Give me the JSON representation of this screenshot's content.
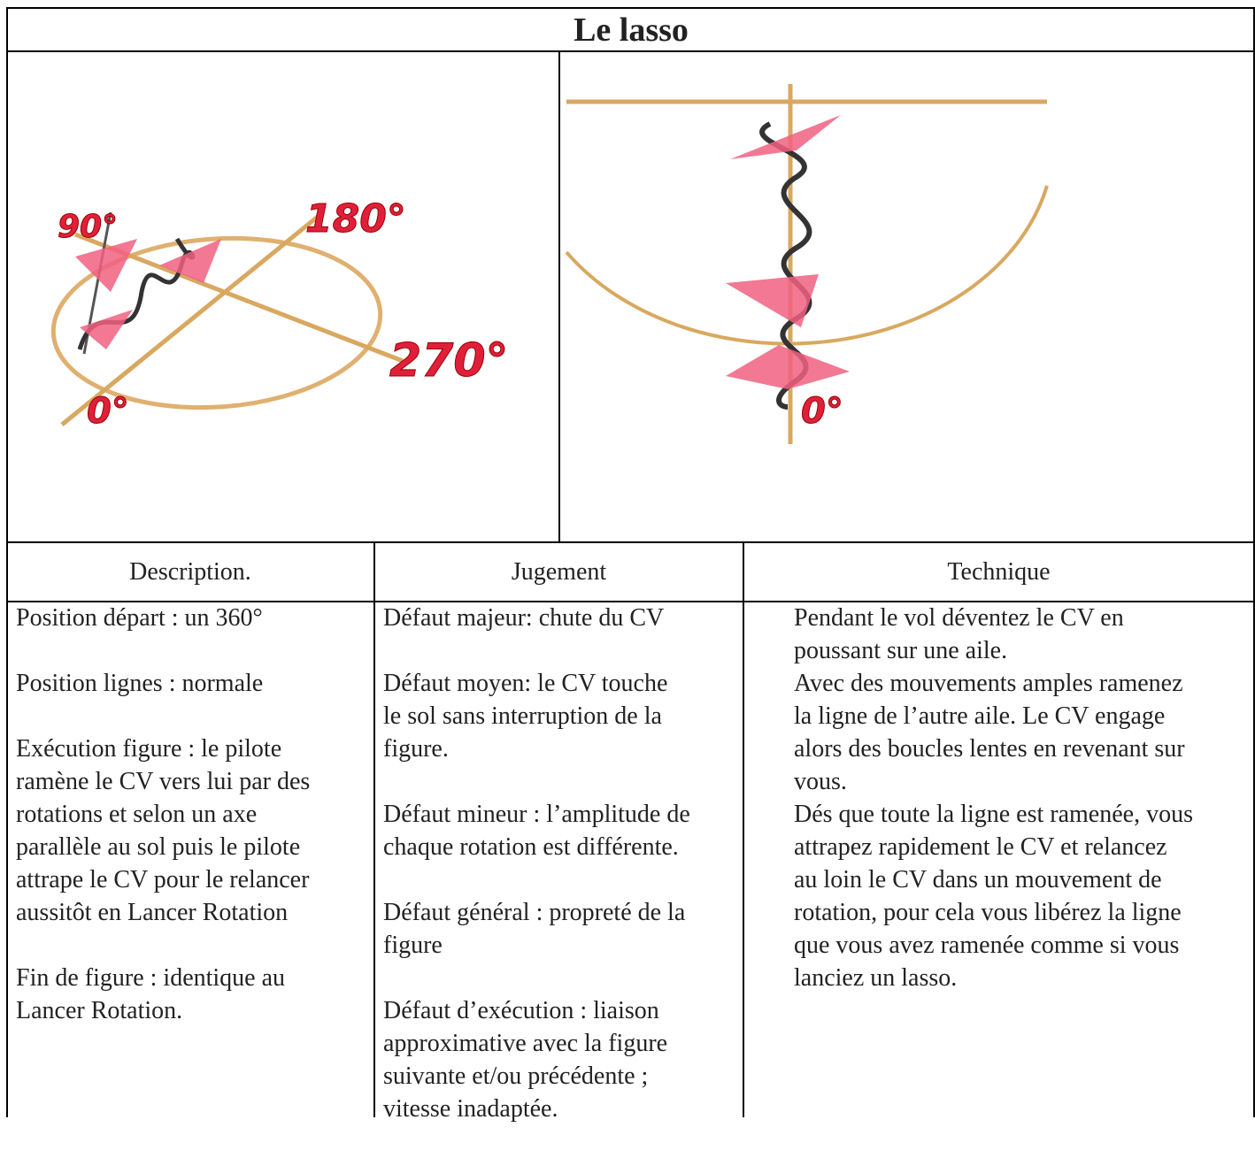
{
  "title": "Le lasso",
  "figures": {
    "left": {
      "labels": [
        "90°",
        "180°",
        "270°",
        "0°"
      ]
    },
    "right": {
      "labels": [
        "0°"
      ]
    }
  },
  "table": {
    "headers": [
      "Description.",
      "Jugement",
      "Technique"
    ],
    "cells": [
      [
        [
          "Position départ : un 360°"
        ],
        [
          "Position lignes : normale"
        ],
        [
          "Exécution figure : le pilote",
          "ramène le CV vers lui par des",
          "rotations et  selon un axe",
          "parallèle au sol puis le pilote",
          "attrape le CV pour le relancer",
          "aussitôt en Lancer Rotation"
        ],
        [
          "Fin de figure : identique au",
          "Lancer Rotation."
        ]
      ],
      [
        [
          "Défaut majeur: chute du CV"
        ],
        [
          "Défaut moyen: le CV touche",
          "le sol sans interruption de la",
          "figure."
        ],
        [
          "Défaut mineur : l’amplitude de",
          "chaque rotation est différente."
        ],
        [
          "Défaut général : propreté de la",
          "figure"
        ],
        [
          "Défaut d’exécution : liaison",
          "approximative avec la figure",
          "suivante  et/ou précédente ;",
          "vitesse inadaptée."
        ]
      ],
      [
        [
          "Pendant le vol déventez le CV en",
          "poussant sur une aile.",
          "Avec des mouvements amples ramenez",
          "la ligne de l’autre aile. Le CV engage",
          "alors des boucles lentes en revenant sur",
          "vous.",
          "Dés que toute la ligne est ramenée, vous",
          "attrapez rapidement le CV et relancez",
          "au loin le CV dans un mouvement de",
          "rotation, pour cela vous libérez la ligne",
          "que vous avez ramenée comme si vous",
          "lanciez un lasso."
        ]
      ]
    ]
  }
}
